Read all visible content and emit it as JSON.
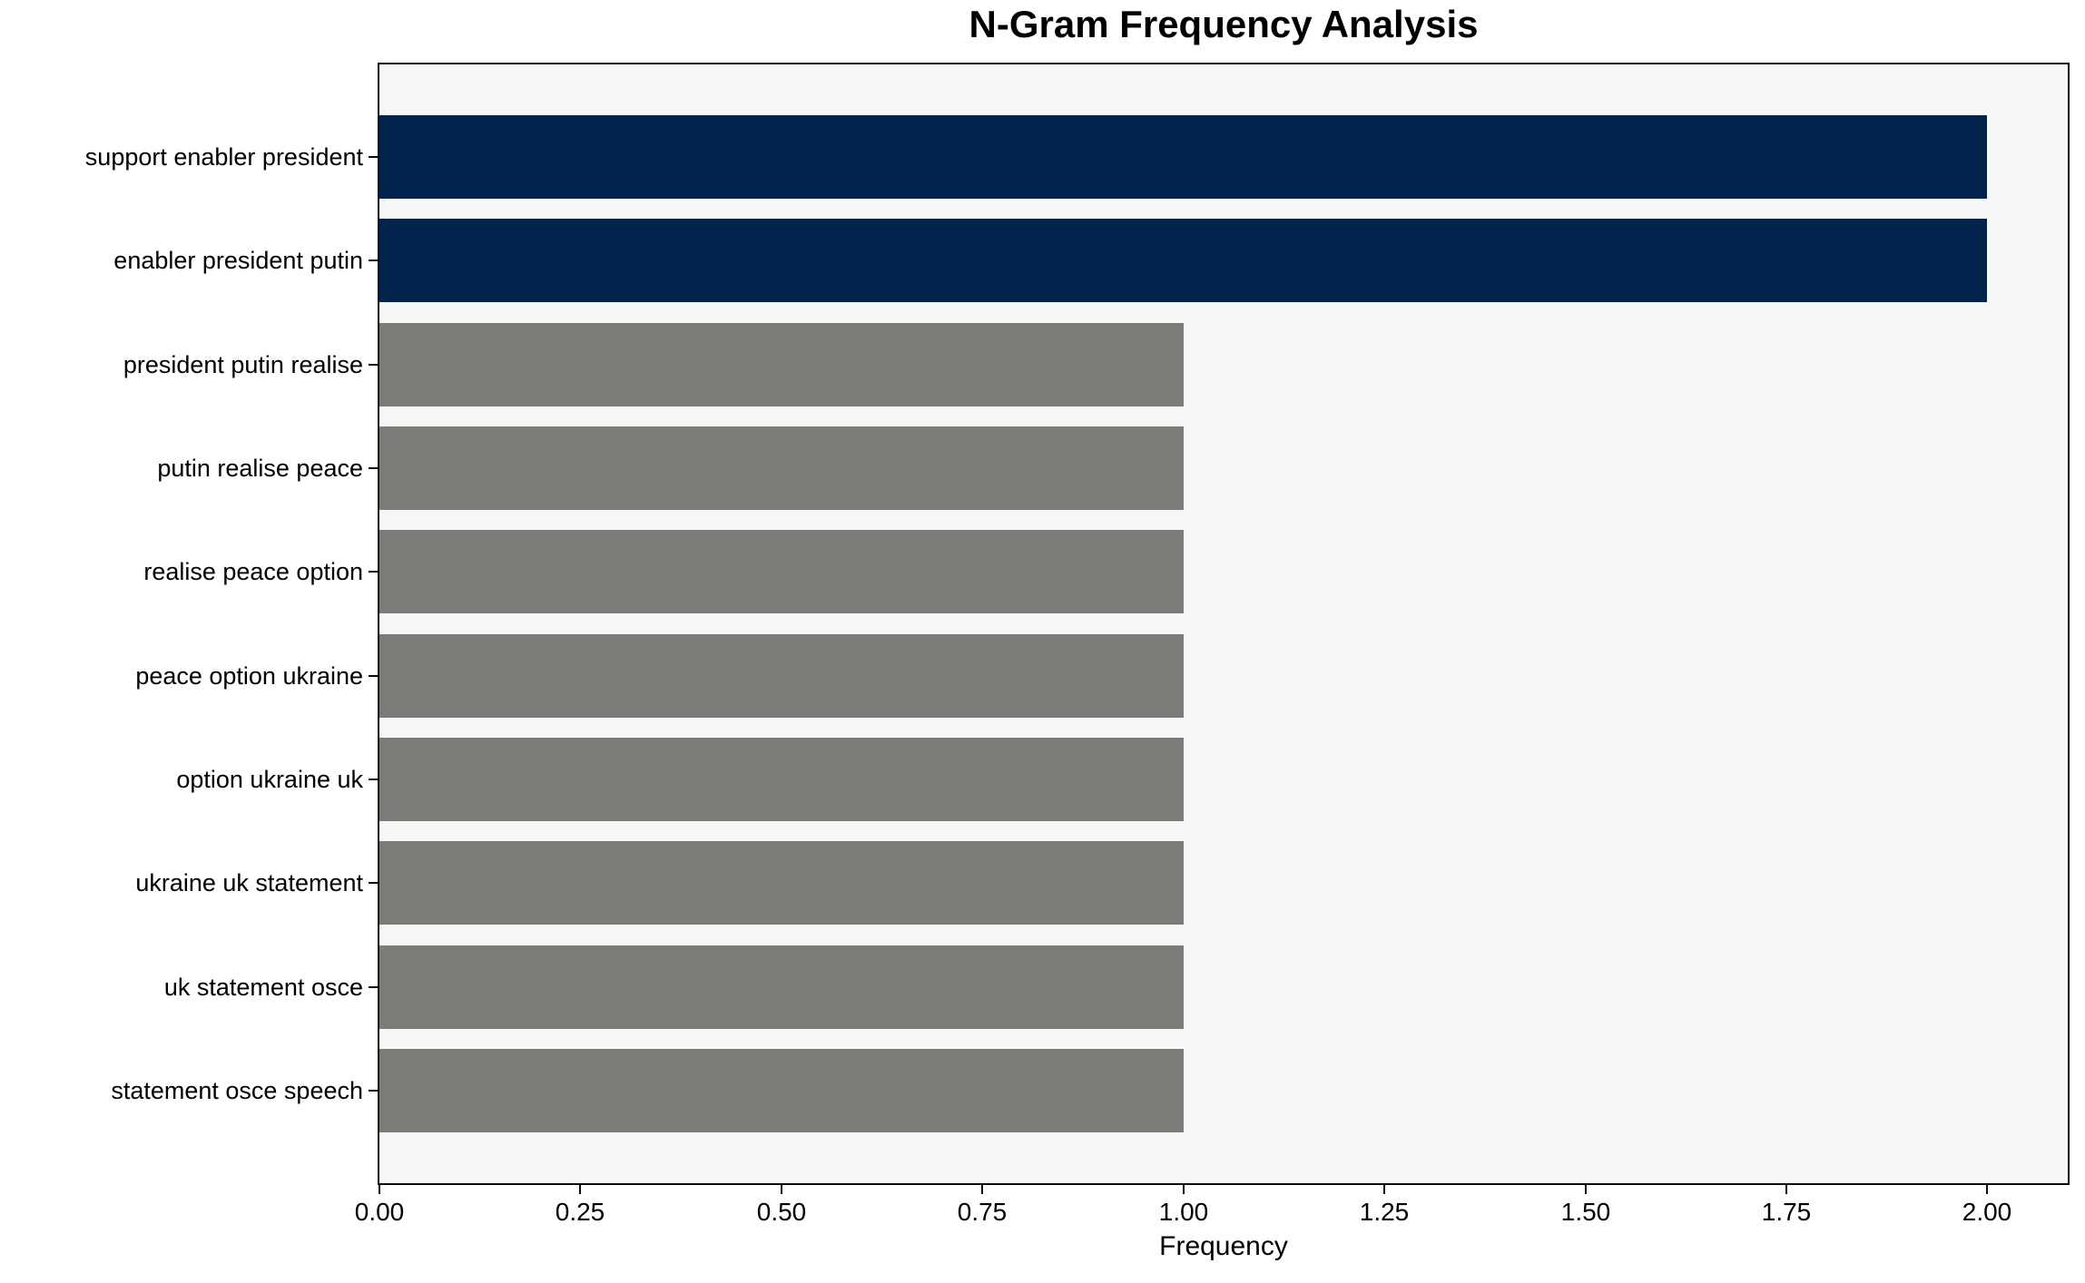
{
  "chart_data": {
    "type": "bar",
    "orientation": "horizontal",
    "title": "N-Gram Frequency Analysis",
    "xlabel": "Frequency",
    "ylabel": "",
    "categories": [
      "support enabler president",
      "enabler president putin",
      "president putin realise",
      "putin realise peace",
      "realise peace option",
      "peace option ukraine",
      "option ukraine uk",
      "ukraine uk statement",
      "uk statement osce",
      "statement osce speech"
    ],
    "values": [
      2,
      2,
      1,
      1,
      1,
      1,
      1,
      1,
      1,
      1
    ],
    "xlim": [
      0,
      2.1
    ],
    "xticks": [
      0.0,
      0.25,
      0.5,
      0.75,
      1.0,
      1.25,
      1.5,
      1.75,
      2.0
    ],
    "xtick_labels": [
      "0.00",
      "0.25",
      "0.50",
      "0.75",
      "1.00",
      "1.25",
      "1.50",
      "1.75",
      "2.00"
    ],
    "grid": false,
    "legend": false,
    "bar_colors": [
      "#02234c",
      "#02234c",
      "#7b7b78",
      "#7b7b78",
      "#7b7b78",
      "#7b7b78",
      "#7b7b78",
      "#7b7b78",
      "#7b7b78",
      "#7b7b78"
    ],
    "colors": {
      "bar_highlight": "#02234c",
      "bar_default": "#7b7b78",
      "plot_background": "#f7f7f7",
      "figure_background": "#ffffff",
      "spine": "#0d0d0d",
      "text": "#000000"
    }
  }
}
